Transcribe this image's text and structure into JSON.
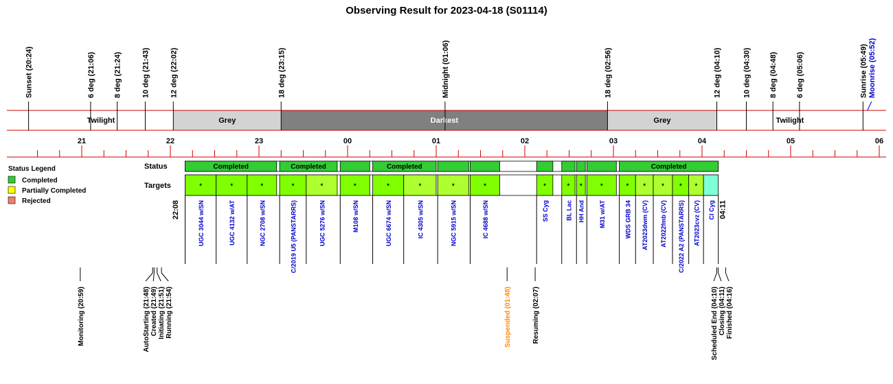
{
  "chart_data": {
    "type": "table",
    "title": "Observing Result for 2023-04-18 (S01114)",
    "timeline_start": "20:00",
    "timeline_end": "06:10",
    "sky_events": [
      {
        "label": "Sunset (20:24)",
        "time": "20:24",
        "color": "#000000"
      },
      {
        "label": "6 deg (21:06)",
        "time": "21:06",
        "color": "#000000"
      },
      {
        "label": "8 deg (21:24)",
        "time": "21:24",
        "color": "#000000"
      },
      {
        "label": "10 deg (21:43)",
        "time": "21:43",
        "color": "#000000"
      },
      {
        "label": "12 deg (22:02)",
        "time": "22:02",
        "color": "#000000"
      },
      {
        "label": "18 deg (23:15)",
        "time": "23:15",
        "color": "#000000"
      },
      {
        "label": "Midnight (01:06)",
        "time": "01:06",
        "color": "#000000"
      },
      {
        "label": "18 deg (02:56)",
        "time": "02:56",
        "color": "#000000"
      },
      {
        "label": "12 deg (04:10)",
        "time": "04:10",
        "color": "#000000"
      },
      {
        "label": "10 deg (04:30)",
        "time": "04:30",
        "color": "#000000"
      },
      {
        "label": "8 deg (04:48)",
        "time": "04:48",
        "color": "#000000"
      },
      {
        "label": "6 deg (05:06)",
        "time": "05:06",
        "color": "#000000"
      },
      {
        "label": "Sunrise (05:49)",
        "time": "05:49",
        "color": "#000000"
      },
      {
        "label": "Moonrise (05:52)",
        "time": "05:52",
        "color": "#0000cc"
      }
    ],
    "sky_bands": [
      {
        "label": "Twilight",
        "start": "20:24",
        "end": "22:02",
        "fill": "#ffffff",
        "text_color": "#000000"
      },
      {
        "label": "Grey",
        "start": "22:02",
        "end": "23:15",
        "fill": "#d3d3d3",
        "text_color": "#000000"
      },
      {
        "label": "Darkest",
        "start": "23:15",
        "end": "02:56",
        "fill": "#808080",
        "text_color": "#ffffff"
      },
      {
        "label": "Grey",
        "start": "02:56",
        "end": "04:10",
        "fill": "#d3d3d3",
        "text_color": "#000000"
      },
      {
        "label": "Twilight",
        "start": "04:10",
        "end": "05:49",
        "fill": "#ffffff",
        "text_color": "#000000"
      }
    ],
    "hour_ticks": [
      "21",
      "22",
      "23",
      "00",
      "01",
      "02",
      "03",
      "04",
      "05",
      "06"
    ],
    "row_labels": {
      "status": "Status",
      "targets": "Targets"
    },
    "legend": {
      "title": "Status Legend",
      "placement": "left",
      "entries": [
        {
          "label": "Completed",
          "color": "#33cc33"
        },
        {
          "label": "Partially Completed",
          "color": "#ffff00"
        },
        {
          "label": "Rejected",
          "color": "#f08070"
        }
      ]
    },
    "status_blocks": [
      {
        "label": "Completed",
        "start": "22:10",
        "end": "23:12",
        "color": "#33cc33"
      },
      {
        "label": "Completed",
        "start": "23:14",
        "end": "23:53",
        "color": "#33cc33"
      },
      {
        "label": "",
        "start": "23:55",
        "end": "00:15",
        "color": "#33cc33"
      },
      {
        "label": "Completed",
        "start": "00:17",
        "end": "01:00",
        "color": "#33cc33"
      },
      {
        "label": "",
        "start": "01:01",
        "end": "01:22",
        "color": "#33cc33"
      },
      {
        "label": "",
        "start": "01:23",
        "end": "01:43",
        "color": "#33cc33"
      },
      {
        "label": "",
        "start": "02:08",
        "end": "02:19",
        "color": "#33cc33"
      },
      {
        "label": "",
        "start": "02:25",
        "end": "02:34",
        "color": "#33cc33"
      },
      {
        "label": "",
        "start": "02:35",
        "end": "02:41",
        "color": "#33cc33"
      },
      {
        "label": "",
        "start": "02:42",
        "end": "03:02",
        "color": "#33cc33"
      },
      {
        "label": "Completed",
        "start": "03:04",
        "end": "04:11",
        "color": "#33cc33"
      }
    ],
    "targets": [
      {
        "name": "UGC 3044 w/SN",
        "start": "22:10",
        "end": "22:31",
        "color": "#80ff00",
        "mark": "*"
      },
      {
        "name": "UGC 4132 w/AT",
        "start": "22:31",
        "end": "22:52",
        "color": "#80ff00",
        "mark": "*"
      },
      {
        "name": "NGC 2708 w/SN",
        "start": "22:52",
        "end": "23:12",
        "color": "#80ff00",
        "mark": "*"
      },
      {
        "name": "C/2019 U5 (PANSTARRS)",
        "start": "23:14",
        "end": "23:32",
        "color": "#80ff00",
        "mark": "*"
      },
      {
        "name": "UGC 5276 w/SN",
        "start": "23:32",
        "end": "23:53",
        "color": "#adff2f",
        "mark": "*"
      },
      {
        "name": "M108 w/SN",
        "start": "23:55",
        "end": "00:15",
        "color": "#80ff00",
        "mark": "*"
      },
      {
        "name": "UGC 6674 w/SN",
        "start": "00:17",
        "end": "00:38",
        "color": "#80ff00",
        "mark": "*"
      },
      {
        "name": "IC 4305 w/SN",
        "start": "00:38",
        "end": "01:00",
        "color": "#adff2f",
        "mark": "*"
      },
      {
        "name": "NGC 5915 w/SN",
        "start": "01:01",
        "end": "01:22",
        "color": "#adff2f",
        "mark": "*"
      },
      {
        "name": "IC 4688 w/SN",
        "start": "01:23",
        "end": "01:43",
        "color": "#80ff00",
        "mark": "*"
      },
      {
        "name": "SS Cyg",
        "start": "02:08",
        "end": "02:19",
        "color": "#80ff00",
        "mark": "*"
      },
      {
        "name": "BL Lac",
        "start": "02:25",
        "end": "02:34",
        "color": "#80ff00",
        "mark": "*"
      },
      {
        "name": "HH And",
        "start": "02:35",
        "end": "02:41",
        "color": "#80ff00",
        "mark": "*"
      },
      {
        "name": "M31 w/AT",
        "start": "02:42",
        "end": "03:02",
        "color": "#80ff00",
        "mark": "*"
      },
      {
        "name": "WDS GRB 34",
        "start": "03:04",
        "end": "03:15",
        "color": "#80ff00",
        "mark": "*"
      },
      {
        "name": "AT2023dwm (CV)",
        "start": "03:15",
        "end": "03:27",
        "color": "#adff2f",
        "mark": "*"
      },
      {
        "name": "AT2022fmb (CV)",
        "start": "03:27",
        "end": "03:40",
        "color": "#adff2f",
        "mark": "*"
      },
      {
        "name": "C/2022 A2 (PANSTARRS)",
        "start": "03:40",
        "end": "03:51",
        "color": "#80ff00",
        "mark": "*"
      },
      {
        "name": "AT2023cvz (CV)",
        "start": "03:51",
        "end": "04:01",
        "color": "#adff2f",
        "mark": "*"
      },
      {
        "name": "CI Cyg",
        "start": "04:01",
        "end": "04:11",
        "color": "#7fffd4",
        "mark": ""
      }
    ],
    "time_labels": [
      {
        "label": "22:08",
        "time": "22:08"
      },
      {
        "label": "04:11",
        "time": "04:11"
      }
    ],
    "system_events": [
      {
        "label": "Monitoring (20:59)",
        "time": "20:59",
        "color": "#000000"
      },
      {
        "label": "AutoStarting (21:48)",
        "time": "21:48",
        "color": "#000000"
      },
      {
        "label": "Created (21:49)",
        "time": "21:49",
        "color": "#000000"
      },
      {
        "label": "Initiating (21:51)",
        "time": "21:51",
        "color": "#000000"
      },
      {
        "label": "Running (21:54)",
        "time": "21:54",
        "color": "#000000"
      },
      {
        "label": "Suspended (01:48)",
        "time": "01:48",
        "color": "#ff8c00"
      },
      {
        "label": "Resuming (02:07)",
        "time": "02:07",
        "color": "#000000"
      },
      {
        "label": "Scheduled End (04:10)",
        "time": "04:10",
        "color": "#000000"
      },
      {
        "label": "Closing (04:11)",
        "time": "04:11",
        "color": "#000000"
      },
      {
        "label": "Finished (04:16)",
        "time": "04:16",
        "color": "#000000"
      }
    ]
  }
}
